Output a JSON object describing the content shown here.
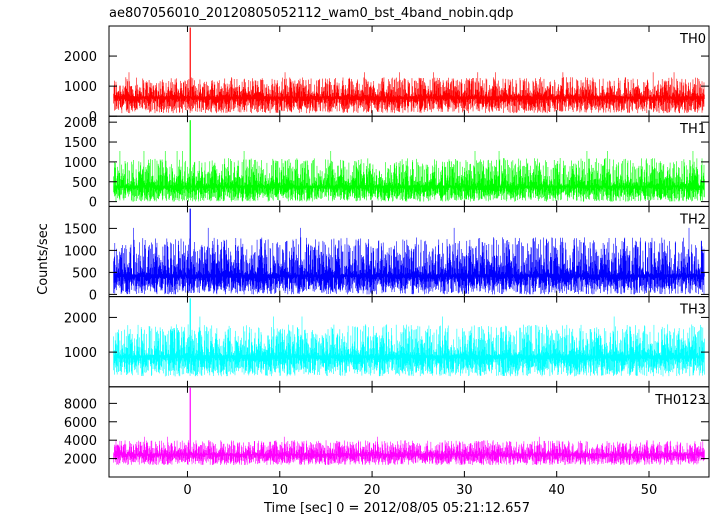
{
  "chart_data": {
    "type": "line",
    "title": "ae807056010_20120805052112_wam0_bst_4band_nobin.qdp",
    "xlabel": "Time [sec] 0 = 2012/08/05 05:21:12.657",
    "ylabel": "Counts/sec",
    "xlim": [
      -8.5,
      56.5
    ],
    "xticks": [
      0,
      10,
      20,
      30,
      40,
      50
    ],
    "x_range_data": [
      -8,
      56
    ],
    "spike_x": 0.3,
    "grid": false,
    "panels": [
      {
        "name": "TH0",
        "color": "#ff0000",
        "ylim": [
          0,
          3000
        ],
        "yticks": [
          0,
          1000,
          2000
        ],
        "baseline": 650,
        "noise_low": 100,
        "noise_high": 1300,
        "spike_peak": 2950
      },
      {
        "name": "TH1",
        "color": "#00ff00",
        "ylim": [
          -120,
          2150
        ],
        "yticks": [
          0,
          500,
          1000,
          1500,
          2000
        ],
        "baseline": 400,
        "noise_low": 0,
        "noise_high": 1100,
        "spike_peak": 2050
      },
      {
        "name": "TH2",
        "color": "#0000ff",
        "ylim": [
          -50,
          2000
        ],
        "yticks": [
          0,
          500,
          1000,
          1500
        ],
        "baseline": 450,
        "noise_low": 0,
        "noise_high": 1300,
        "spike_peak": 1950
      },
      {
        "name": "TH3",
        "color": "#00ffff",
        "ylim": [
          0,
          2600
        ],
        "yticks": [
          1000,
          2000
        ],
        "baseline": 900,
        "noise_low": 300,
        "noise_high": 1800,
        "spike_peak": 2550
      },
      {
        "name": "TH0123",
        "color": "#ff00ff",
        "ylim": [
          0,
          9800
        ],
        "yticks": [
          2000,
          4000,
          6000,
          8000
        ],
        "baseline": 2500,
        "noise_low": 1300,
        "noise_high": 4000,
        "spike_peak": 9700
      }
    ]
  }
}
